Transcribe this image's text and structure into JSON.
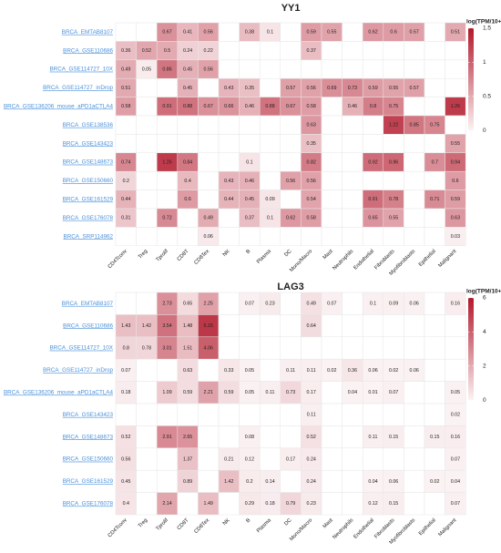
{
  "chart_data": [
    {
      "type": "heatmap",
      "title": "YY1",
      "colorbar_title": "log(TPM/10+1)",
      "x": [
        "CD4Tconv",
        "Treg",
        "Tprolif",
        "CD8T",
        "CD8Tex",
        "NK",
        "B",
        "Plasma",
        "DC",
        "Mono/Macro",
        "Mast",
        "Neutrophils",
        "Endothelial",
        "Fibroblasts",
        "Myofibroblasts",
        "Epithelial",
        "Malignant"
      ],
      "y": [
        "BRCA_EMTAB8107",
        "BRCA_GSE110686",
        "BRCA_GSE114727_10X",
        "BRCA_GSE114727_inDrop",
        "BRCA_GSE136206_mouse_aPD1aCTLA4",
        "BRCA_GSE138536",
        "BRCA_GSE143423",
        "BRCA_GSE148673",
        "BRCA_GSE150660",
        "BRCA_GSE161529",
        "BRCA_GSE176078",
        "BRCA_SRP114962"
      ],
      "values": [
        [
          null,
          null,
          0.67,
          0.41,
          0.56,
          null,
          0.38,
          0.1,
          null,
          0.59,
          0.55,
          null,
          0.62,
          0.6,
          0.57,
          null,
          0.51
        ],
        [
          0.36,
          0.52,
          0.5,
          0.24,
          0.22,
          null,
          null,
          null,
          null,
          0.37,
          null,
          null,
          null,
          null,
          null,
          null,
          null
        ],
        [
          0.49,
          0.05,
          0.86,
          0.45,
          0.56,
          null,
          null,
          null,
          null,
          null,
          null,
          null,
          null,
          null,
          null,
          null,
          null
        ],
        [
          0.51,
          null,
          null,
          0.45,
          null,
          0.43,
          0.35,
          null,
          0.57,
          0.56,
          0.69,
          0.73,
          0.59,
          0.55,
          0.57,
          null,
          null
        ],
        [
          0.58,
          null,
          0.91,
          0.88,
          0.67,
          0.66,
          0.46,
          0.88,
          0.67,
          0.58,
          null,
          0.46,
          0.8,
          0.75,
          null,
          null,
          1.26
        ],
        [
          null,
          null,
          null,
          null,
          null,
          null,
          null,
          null,
          null,
          0.63,
          null,
          null,
          null,
          1.22,
          0.85,
          0.75,
          null
        ],
        [
          null,
          null,
          null,
          null,
          null,
          null,
          null,
          null,
          null,
          0.35,
          null,
          null,
          null,
          null,
          null,
          null,
          0.55
        ],
        [
          0.74,
          null,
          1.26,
          0.84,
          null,
          null,
          0.1,
          null,
          null,
          0.82,
          null,
          null,
          0.92,
          0.96,
          null,
          0.7,
          0.94
        ],
        [
          0.2,
          null,
          null,
          0.4,
          null,
          0.43,
          0.46,
          null,
          0.56,
          0.56,
          null,
          null,
          null,
          null,
          null,
          null,
          0.6
        ],
        [
          0.44,
          null,
          null,
          0.6,
          null,
          0.44,
          0.45,
          0.09,
          null,
          0.54,
          null,
          null,
          0.91,
          0.78,
          null,
          0.71,
          0.59
        ],
        [
          0.31,
          null,
          0.72,
          null,
          0.49,
          null,
          0.37,
          0.1,
          0.62,
          0.58,
          null,
          null,
          0.65,
          0.55,
          null,
          null,
          0.63
        ],
        [
          null,
          null,
          null,
          null,
          0.06,
          null,
          null,
          null,
          null,
          null,
          null,
          null,
          null,
          null,
          null,
          null,
          0.03
        ]
      ],
      "zlim": [
        0,
        1.5
      ],
      "zticks": [
        0,
        0.5,
        1,
        1.5
      ],
      "colors": [
        "#fbf3f4",
        "#b2182b"
      ]
    },
    {
      "type": "heatmap",
      "title": "LAG3",
      "colorbar_title": "log(TPM/10+1)",
      "x": [
        "CD4Tconv",
        "Treg",
        "Tprolif",
        "CD8T",
        "CD8Tex",
        "NK",
        "B",
        "Plasma",
        "DC",
        "Mono/Macro",
        "Mast",
        "Neutrophils",
        "Endothelial",
        "Fibroblasts",
        "Myofibroblasts",
        "Epithelial",
        "Malignant"
      ],
      "y": [
        "BRCA_EMTAB8107",
        "BRCA_GSE110686",
        "BRCA_GSE114727_10X",
        "BRCA_GSE114727_inDrop",
        "BRCA_GSE136206_mouse_aPD1aCTLA4",
        "BRCA_GSE143423",
        "BRCA_GSE148673",
        "BRCA_GSE150660",
        "BRCA_GSE161529",
        "BRCA_GSE176078"
      ],
      "values": [
        [
          null,
          null,
          2.73,
          0.65,
          2.25,
          null,
          0.07,
          0.23,
          null,
          0.49,
          0.07,
          null,
          0.1,
          0.09,
          0.06,
          null,
          0.16
        ],
        [
          1.43,
          1.42,
          3.54,
          1.48,
          5.15,
          null,
          null,
          null,
          null,
          0.64,
          null,
          null,
          null,
          null,
          null,
          null,
          null
        ],
        [
          0.8,
          0.78,
          3.01,
          1.51,
          4.06,
          null,
          null,
          null,
          null,
          null,
          null,
          null,
          null,
          null,
          null,
          null,
          null
        ],
        [
          0.07,
          null,
          null,
          0.63,
          null,
          0.33,
          0.05,
          null,
          0.11,
          0.11,
          0.02,
          0.36,
          0.06,
          0.02,
          0.06,
          null,
          null
        ],
        [
          0.18,
          null,
          1.09,
          0.59,
          2.21,
          0.59,
          0.05,
          0.11,
          0.73,
          0.17,
          null,
          0.04,
          0.01,
          0.07,
          null,
          null,
          0.05
        ],
        [
          null,
          null,
          null,
          null,
          null,
          null,
          null,
          null,
          null,
          0.11,
          null,
          null,
          null,
          null,
          null,
          null,
          0.02
        ],
        [
          0.52,
          null,
          2.91,
          2.65,
          null,
          null,
          0.08,
          null,
          null,
          0.52,
          null,
          null,
          0.11,
          0.15,
          null,
          0.15,
          0.16
        ],
        [
          0.56,
          null,
          null,
          1.37,
          null,
          0.21,
          0.12,
          null,
          0.17,
          0.24,
          null,
          null,
          null,
          null,
          null,
          null,
          0.07
        ],
        [
          0.45,
          null,
          null,
          0.89,
          null,
          1.42,
          0.2,
          0.14,
          null,
          0.24,
          null,
          null,
          0.04,
          0.06,
          null,
          0.02,
          0.04
        ],
        [
          0.4,
          null,
          2.14,
          null,
          1.49,
          null,
          0.29,
          0.18,
          0.79,
          0.23,
          null,
          null,
          0.12,
          0.15,
          null,
          null,
          0.07
        ]
      ],
      "zlim": [
        0,
        6
      ],
      "zticks": [
        0,
        2,
        4,
        6
      ],
      "colors": [
        "#fbf3f4",
        "#b2182b"
      ]
    }
  ]
}
